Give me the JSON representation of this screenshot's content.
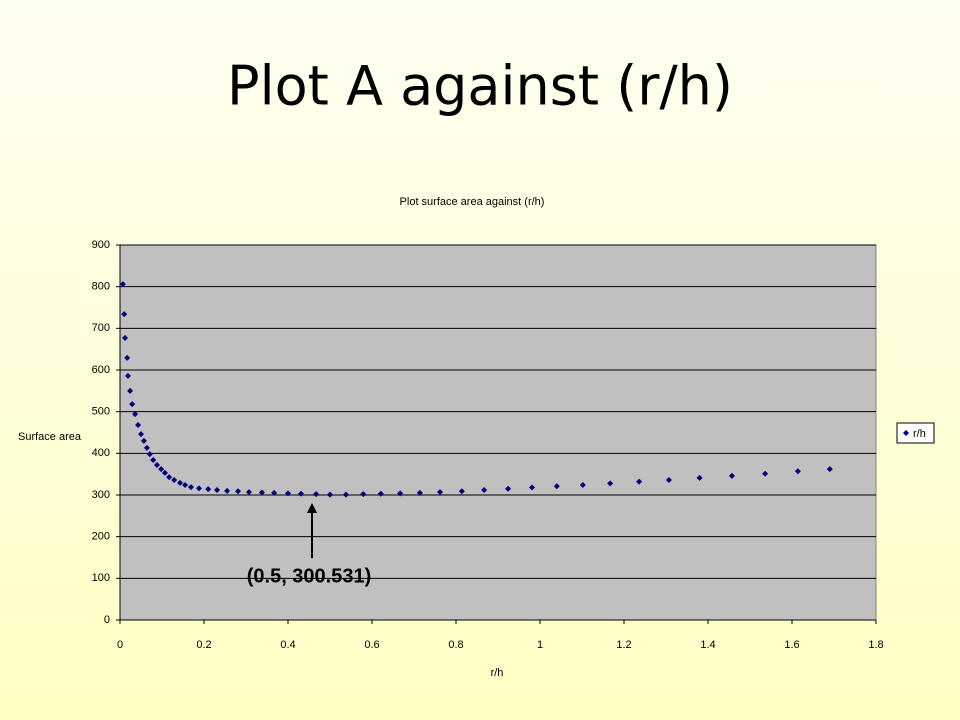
{
  "slide": {
    "title": "Plot A against (r/h)"
  },
  "chart_data": {
    "type": "scatter",
    "title": "Plot surface area against (r/h)",
    "x_label": "r/h",
    "y_label": "Surface area",
    "annotation": "(0.5, 300.531)",
    "legend": "right",
    "grid": true,
    "xlim": [
      0,
      1.8
    ],
    "xticks": [
      0,
      0.2,
      0.4,
      0.6,
      0.8,
      1,
      1.2,
      1.4,
      1.6,
      1.8
    ],
    "ylim": [
      0,
      900
    ],
    "yticks": [
      0,
      100,
      200,
      300,
      400,
      500,
      600,
      700,
      800,
      900
    ],
    "series": [
      {
        "name": "r/h",
        "color": "#000080",
        "x": [
          0.007,
          0.01,
          0.012,
          0.017,
          0.019,
          0.024,
          0.029,
          0.036,
          0.043,
          0.05,
          0.057,
          0.064,
          0.071,
          0.079,
          0.088,
          0.098,
          0.107,
          0.117,
          0.129,
          0.143,
          0.155,
          0.169,
          0.188,
          0.21,
          0.231,
          0.255,
          0.281,
          0.307,
          0.338,
          0.367,
          0.4,
          0.431,
          0.467,
          0.5,
          0.538,
          0.579,
          0.621,
          0.667,
          0.714,
          0.762,
          0.814,
          0.867,
          0.924,
          0.981,
          1.04,
          1.102,
          1.167,
          1.236,
          1.307,
          1.38,
          1.457,
          1.536,
          1.614,
          1.69
        ],
        "values": [
          806,
          734,
          677,
          629,
          586,
          550,
          518,
          494,
          468,
          446,
          430,
          413,
          398,
          384,
          372,
          362,
          353,
          343,
          336,
          329,
          324,
          319,
          316,
          314,
          312,
          310,
          309,
          307,
          306,
          305,
          304,
          303,
          302,
          301,
          301,
          302,
          303,
          304,
          305,
          307,
          309,
          312,
          315,
          318,
          321,
          324,
          328,
          332,
          336,
          341,
          346,
          351,
          357,
          362
        ]
      }
    ]
  }
}
